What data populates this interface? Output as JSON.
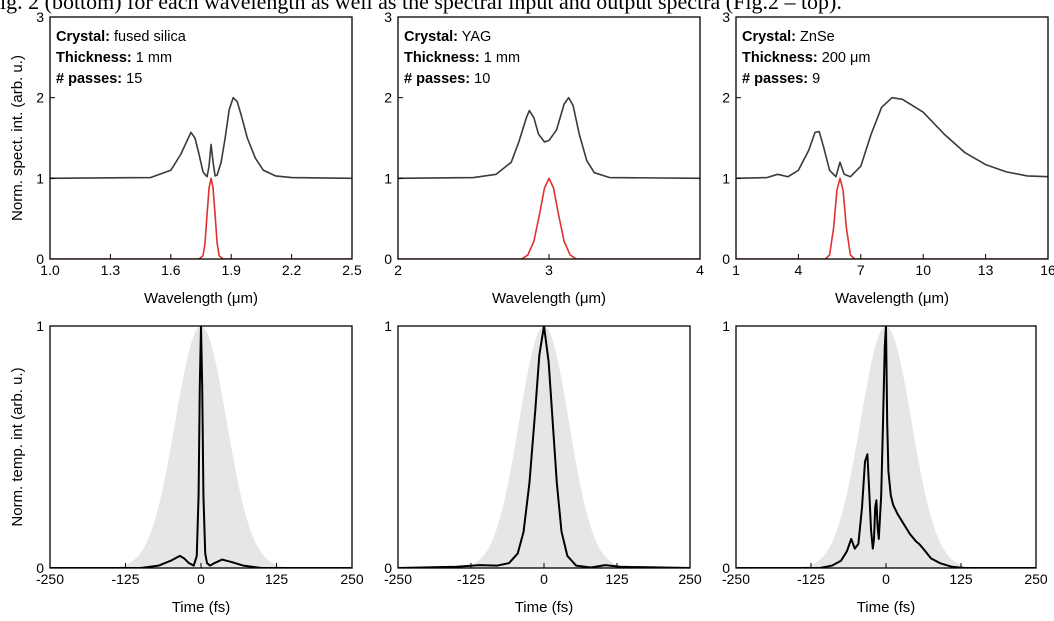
{
  "header_text": "ig. 2 (bottom) for each wavelength as well as the spectral input and output spectra (Fig.2 – top).",
  "colors": {
    "output_spectrum": "#3a3a3a",
    "input_spectrum": "#e03030",
    "pulse": "#000000",
    "gaussian_fill": "#e6e6e6"
  },
  "chart_data": [
    {
      "type": "line",
      "panel": "top-left",
      "xlabel": "Wavelength (μm)",
      "ylabel": "Norm. spect. int. (arb. u.)",
      "xlim": [
        1.0,
        2.5
      ],
      "ylim": [
        0,
        3
      ],
      "xticks": [
        1.0,
        1.3,
        1.6,
        1.9,
        2.2,
        2.5
      ],
      "xticklabels": [
        "1.0",
        "1.3",
        "1.6",
        "1.9",
        "2.2",
        "2.5"
      ],
      "yticks": [
        0,
        1,
        2,
        3
      ],
      "yticklabels": [
        "0",
        "1",
        "2",
        "3"
      ],
      "annotation": [
        {
          "key": "Crystal:",
          "value": " fused silica"
        },
        {
          "key": "Thickness:",
          "value": " 1 mm"
        },
        {
          "key": "# passes:",
          "value": " 15"
        }
      ],
      "series": [
        {
          "role": "output",
          "color": "#3a3a3a",
          "points": [
            [
              1.0,
              1.0
            ],
            [
              1.5,
              1.01
            ],
            [
              1.6,
              1.1
            ],
            [
              1.65,
              1.3
            ],
            [
              1.7,
              1.57
            ],
            [
              1.72,
              1.5
            ],
            [
              1.74,
              1.3
            ],
            [
              1.76,
              1.08
            ],
            [
              1.78,
              1.02
            ],
            [
              1.79,
              1.15
            ],
            [
              1.8,
              1.42
            ],
            [
              1.81,
              1.2
            ],
            [
              1.82,
              1.03
            ],
            [
              1.83,
              1.04
            ],
            [
              1.85,
              1.2
            ],
            [
              1.87,
              1.5
            ],
            [
              1.89,
              1.85
            ],
            [
              1.91,
              2.0
            ],
            [
              1.93,
              1.95
            ],
            [
              1.95,
              1.78
            ],
            [
              1.98,
              1.5
            ],
            [
              2.02,
              1.25
            ],
            [
              2.06,
              1.1
            ],
            [
              2.12,
              1.03
            ],
            [
              2.2,
              1.01
            ],
            [
              2.5,
              1.0
            ]
          ]
        },
        {
          "role": "input",
          "color": "#e03030",
          "points": [
            [
              1.0,
              0
            ],
            [
              1.74,
              0
            ],
            [
              1.76,
              0.04
            ],
            [
              1.77,
              0.2
            ],
            [
              1.78,
              0.55
            ],
            [
              1.79,
              0.88
            ],
            [
              1.8,
              1.0
            ],
            [
              1.81,
              0.88
            ],
            [
              1.82,
              0.55
            ],
            [
              1.83,
              0.2
            ],
            [
              1.84,
              0.04
            ],
            [
              1.86,
              0
            ],
            [
              2.5,
              0
            ]
          ]
        }
      ]
    },
    {
      "type": "line",
      "panel": "top-middle",
      "xlabel": "Wavelength (μm)",
      "ylabel": "",
      "xlim": [
        2,
        4
      ],
      "ylim": [
        0,
        3
      ],
      "xticks": [
        2,
        3,
        4
      ],
      "xticklabels": [
        "2",
        "3",
        "4"
      ],
      "yticks": [
        0,
        1,
        2,
        3
      ],
      "yticklabels": [
        "0",
        "1",
        "2",
        "3"
      ],
      "annotation": [
        {
          "key": "Crystal:",
          "value": " YAG"
        },
        {
          "key": "Thickness:",
          "value": " 1 mm"
        },
        {
          "key": "# passes:",
          "value": " 10"
        }
      ],
      "series": [
        {
          "role": "output",
          "color": "#3a3a3a",
          "points": [
            [
              2.0,
              1.0
            ],
            [
              2.5,
              1.01
            ],
            [
              2.65,
              1.05
            ],
            [
              2.75,
              1.2
            ],
            [
              2.8,
              1.45
            ],
            [
              2.85,
              1.75
            ],
            [
              2.87,
              1.84
            ],
            [
              2.9,
              1.75
            ],
            [
              2.93,
              1.55
            ],
            [
              2.97,
              1.45
            ],
            [
              3.0,
              1.47
            ],
            [
              3.05,
              1.6
            ],
            [
              3.1,
              1.92
            ],
            [
              3.13,
              2.0
            ],
            [
              3.16,
              1.9
            ],
            [
              3.2,
              1.55
            ],
            [
              3.25,
              1.22
            ],
            [
              3.3,
              1.07
            ],
            [
              3.4,
              1.01
            ],
            [
              4.0,
              1.0
            ]
          ]
        },
        {
          "role": "input",
          "color": "#e03030",
          "points": [
            [
              2.0,
              0
            ],
            [
              2.82,
              0
            ],
            [
              2.86,
              0.05
            ],
            [
              2.9,
              0.22
            ],
            [
              2.94,
              0.58
            ],
            [
              2.97,
              0.88
            ],
            [
              3.0,
              1.0
            ],
            [
              3.03,
              0.88
            ],
            [
              3.06,
              0.58
            ],
            [
              3.1,
              0.22
            ],
            [
              3.14,
              0.05
            ],
            [
              3.18,
              0
            ],
            [
              4.0,
              0
            ]
          ]
        }
      ]
    },
    {
      "type": "line",
      "panel": "top-right",
      "xlabel": "Wavelength (μm)",
      "ylabel": "",
      "xlim": [
        1,
        16
      ],
      "ylim": [
        0,
        3
      ],
      "xticks": [
        1,
        4,
        7,
        10,
        13,
        16
      ],
      "xticklabels": [
        "1",
        "4",
        "7",
        "10",
        "13",
        "16"
      ],
      "yticks": [
        0,
        1,
        2,
        3
      ],
      "yticklabels": [
        "0",
        "1",
        "2",
        "3"
      ],
      "annotation": [
        {
          "key": "Crystal:",
          "value": " ZnSe"
        },
        {
          "key": "Thickness:",
          "value": " 200 μm"
        },
        {
          "key": "# passes:",
          "value": " 9"
        }
      ],
      "series": [
        {
          "role": "output",
          "color": "#3a3a3a",
          "points": [
            [
              1,
              1.0
            ],
            [
              2.5,
              1.01
            ],
            [
              3,
              1.05
            ],
            [
              3.5,
              1.02
            ],
            [
              4.0,
              1.1
            ],
            [
              4.5,
              1.35
            ],
            [
              4.8,
              1.57
            ],
            [
              5.0,
              1.58
            ],
            [
              5.2,
              1.4
            ],
            [
              5.5,
              1.1
            ],
            [
              5.8,
              1.02
            ],
            [
              6.0,
              1.2
            ],
            [
              6.2,
              1.05
            ],
            [
              6.5,
              1.02
            ],
            [
              7.0,
              1.15
            ],
            [
              7.5,
              1.55
            ],
            [
              8.0,
              1.88
            ],
            [
              8.5,
              2.0
            ],
            [
              9.0,
              1.98
            ],
            [
              10.0,
              1.82
            ],
            [
              11.0,
              1.55
            ],
            [
              12.0,
              1.32
            ],
            [
              13.0,
              1.17
            ],
            [
              14.0,
              1.08
            ],
            [
              15.0,
              1.03
            ],
            [
              16,
              1.02
            ]
          ]
        },
        {
          "role": "input",
          "color": "#e03030",
          "points": [
            [
              1,
              0
            ],
            [
              5.3,
              0
            ],
            [
              5.5,
              0.05
            ],
            [
              5.7,
              0.4
            ],
            [
              5.85,
              0.85
            ],
            [
              6.0,
              1.0
            ],
            [
              6.15,
              0.85
            ],
            [
              6.3,
              0.4
            ],
            [
              6.5,
              0.05
            ],
            [
              6.7,
              0
            ],
            [
              16,
              0
            ]
          ]
        }
      ]
    },
    {
      "type": "area",
      "panel": "bottom-left",
      "xlabel": "Time (fs)",
      "ylabel": "Norm. temp. int (arb. u.)",
      "xlim": [
        -250,
        250
      ],
      "ylim": [
        0,
        1
      ],
      "xticks": [
        -250,
        -125,
        0,
        125,
        250
      ],
      "xticklabels": [
        "-250",
        "-125",
        "0",
        "125",
        "250"
      ],
      "yticks": [
        0,
        1
      ],
      "yticklabels": [
        "0",
        "1"
      ],
      "series": [
        {
          "role": "gaussian",
          "color": "#e6e6e6",
          "center": 0,
          "fwhm": 100
        },
        {
          "role": "pulse",
          "color": "#000000",
          "points": [
            [
              -250,
              0
            ],
            [
              -100,
              0
            ],
            [
              -70,
              0.01
            ],
            [
              -50,
              0.03
            ],
            [
              -35,
              0.05
            ],
            [
              -28,
              0.04
            ],
            [
              -20,
              0.02
            ],
            [
              -12,
              0.01
            ],
            [
              -7,
              0.05
            ],
            [
              -4,
              0.3
            ],
            [
              -2,
              0.75
            ],
            [
              0,
              1.0
            ],
            [
              2,
              0.75
            ],
            [
              4,
              0.3
            ],
            [
              7,
              0.06
            ],
            [
              10,
              0.02
            ],
            [
              15,
              0.01
            ],
            [
              22,
              0.02
            ],
            [
              35,
              0.035
            ],
            [
              50,
              0.025
            ],
            [
              70,
              0.01
            ],
            [
              100,
              0
            ],
            [
              250,
              0
            ]
          ]
        }
      ]
    },
    {
      "type": "area",
      "panel": "bottom-middle",
      "xlabel": "Time (fs)",
      "ylabel": "",
      "xlim": [
        -250,
        250
      ],
      "ylim": [
        0,
        1
      ],
      "xticks": [
        -250,
        -125,
        0,
        125,
        250
      ],
      "xticklabels": [
        "-250",
        "-125",
        "0",
        "125",
        "250"
      ],
      "yticks": [
        0,
        1
      ],
      "yticklabels": [
        "0",
        "1"
      ],
      "series": [
        {
          "role": "gaussian",
          "color": "#e6e6e6",
          "center": 0,
          "fwhm": 100
        },
        {
          "role": "pulse",
          "color": "#000000",
          "points": [
            [
              -250,
              0
            ],
            [
              -150,
              0.005
            ],
            [
              -110,
              0.012
            ],
            [
              -80,
              0.01
            ],
            [
              -60,
              0.02
            ],
            [
              -45,
              0.06
            ],
            [
              -35,
              0.15
            ],
            [
              -25,
              0.35
            ],
            [
              -15,
              0.65
            ],
            [
              -8,
              0.88
            ],
            [
              0,
              1.0
            ],
            [
              8,
              0.85
            ],
            [
              15,
              0.6
            ],
            [
              22,
              0.35
            ],
            [
              30,
              0.15
            ],
            [
              40,
              0.05
            ],
            [
              55,
              0.01
            ],
            [
              80,
              0.002
            ],
            [
              105,
              0.012
            ],
            [
              130,
              0.005
            ],
            [
              250,
              0
            ]
          ]
        }
      ]
    },
    {
      "type": "area",
      "panel": "bottom-right",
      "xlabel": "Time (fs)",
      "ylabel": "",
      "xlim": [
        -250,
        250
      ],
      "ylim": [
        0,
        1
      ],
      "xticks": [
        -250,
        -125,
        0,
        125,
        250
      ],
      "xticklabels": [
        "-250",
        "-125",
        "0",
        "125",
        "250"
      ],
      "yticks": [
        0,
        1
      ],
      "yticklabels": [
        "0",
        "1"
      ],
      "series": [
        {
          "role": "gaussian",
          "color": "#e6e6e6",
          "center": 0,
          "fwhm": 100
        },
        {
          "role": "pulse",
          "color": "#000000",
          "points": [
            [
              -250,
              0
            ],
            [
              -110,
              0
            ],
            [
              -90,
              0.01
            ],
            [
              -75,
              0.03
            ],
            [
              -65,
              0.07
            ],
            [
              -58,
              0.12
            ],
            [
              -52,
              0.08
            ],
            [
              -46,
              0.1
            ],
            [
              -40,
              0.25
            ],
            [
              -35,
              0.44
            ],
            [
              -31,
              0.47
            ],
            [
              -28,
              0.32
            ],
            [
              -25,
              0.16
            ],
            [
              -22,
              0.08
            ],
            [
              -20,
              0.12
            ],
            [
              -18,
              0.25
            ],
            [
              -16,
              0.28
            ],
            [
              -14,
              0.17
            ],
            [
              -12,
              0.12
            ],
            [
              -8,
              0.3
            ],
            [
              -5,
              0.6
            ],
            [
              -2,
              0.92
            ],
            [
              0,
              1.0
            ],
            [
              2,
              0.6
            ],
            [
              4,
              0.4
            ],
            [
              8,
              0.3
            ],
            [
              12,
              0.26
            ],
            [
              20,
              0.22
            ],
            [
              30,
              0.18
            ],
            [
              40,
              0.14
            ],
            [
              50,
              0.11
            ],
            [
              55,
              0.1
            ],
            [
              62,
              0.08
            ],
            [
              75,
              0.04
            ],
            [
              90,
              0.02
            ],
            [
              110,
              0.005
            ],
            [
              130,
              0
            ],
            [
              250,
              0
            ]
          ]
        }
      ]
    }
  ]
}
